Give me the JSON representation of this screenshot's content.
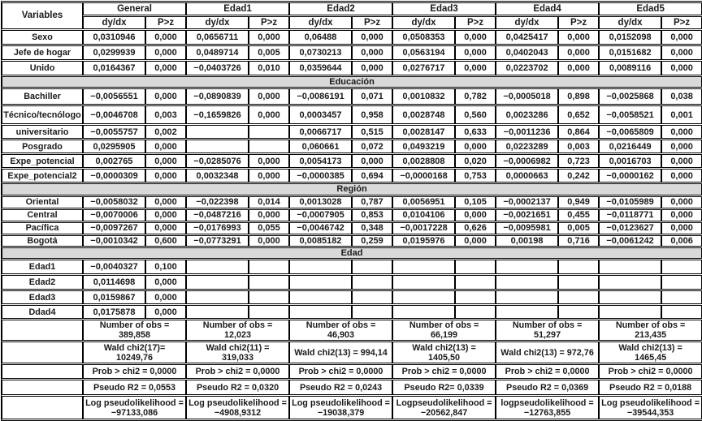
{
  "table": {
    "variables_header": "Variables",
    "col_groups": [
      "General",
      "Edad1",
      "Edad2",
      "Edad3",
      "Edad4",
      "Edad5"
    ],
    "subheaders": {
      "dydx": "dy/dx",
      "pz": "P>z"
    },
    "banner_bg_color": "#d9d9d9",
    "border_color": "#000000",
    "sections": [
      {
        "banner": null,
        "rows": [
          {
            "label": "Sexo",
            "values": [
              "0,0310946",
              "0,000",
              "0,0656711",
              "0,000",
              "0,06488",
              "0,000",
              "0,0508353",
              "0,000",
              "0,0425417",
              "0,000",
              "0,0152098",
              "0,000"
            ]
          },
          {
            "label": "Jefe de hogar",
            "values": [
              "0,0299939",
              "0,000",
              "0,0489714",
              "0,005",
              "0,0730213",
              "0,000",
              "0,0563194",
              "0,000",
              "0,0402043",
              "0,000",
              "0,0151682",
              "0,000"
            ]
          },
          {
            "label": "Unido",
            "values": [
              "0,0164367",
              "0,000",
              "−0,0403726",
              "0,010",
              "0,0359644",
              "0,000",
              "0,0276717",
              "0,000",
              "0,0223702",
              "0,000",
              "0,0089116",
              "0,000"
            ]
          }
        ]
      },
      {
        "banner": "Educación",
        "rows": [
          {
            "label": "Bachiller",
            "values": [
              "−0,0056551",
              "0,000",
              "−0,0890839",
              "0,000",
              "−0,0086191",
              "0,071",
              "0,0010832",
              "0,782",
              "−0,0005018",
              "0,898",
              "−0,0025868",
              "0,038"
            ]
          },
          {
            "label": "Técnico/tecnólogo",
            "values": [
              "−0,0046708",
              "0,003",
              "−0,1659826",
              "0,000",
              "0,0003457",
              "0,958",
              "0,0028748",
              "0,560",
              "0,0023286",
              "0,652",
              "−0,0058521",
              "0,001"
            ]
          },
          {
            "label": "universitario",
            "values": [
              "−0,0055757",
              "0,002",
              "",
              "",
              "0,0066717",
              "0,515",
              "0,0028147",
              "0,633",
              "−0,0011236",
              "0,864",
              "−0,0065809",
              "0,000"
            ]
          },
          {
            "label": "Posgrado",
            "values": [
              "0,0295905",
              "0,000",
              "",
              "",
              "0,060661",
              "0,072",
              "0,0493219",
              "0,000",
              "0,0223289",
              "0,003",
              "0,0216449",
              "0,000"
            ]
          },
          {
            "label": "Expe_potencial",
            "values": [
              "0,002765",
              "0,000",
              "−0,0285076",
              "0,000",
              "0,0054173",
              "0,000",
              "0,0028808",
              "0,020",
              "−0,0006982",
              "0,723",
              "0,0016703",
              "0,000"
            ]
          },
          {
            "label": "Expe_potencial2",
            "values": [
              "−0,0000309",
              "0,000",
              "0,0032348",
              "0,000",
              "−0,0000385",
              "0,694",
              "−0,0000168",
              "0,753",
              "0,0000663",
              "0,242",
              "−0,0000162",
              "0,000"
            ]
          }
        ]
      },
      {
        "banner": "Región",
        "rows": [
          {
            "label": "Oriental",
            "values": [
              "−0,0058032",
              "0,000",
              "−0,022398",
              "0,014",
              "0,0013028",
              "0,787",
              "0,0056951",
              "0,105",
              "−0,0002137",
              "0,949",
              "−0,0105989",
              "0,000"
            ]
          },
          {
            "label": "Central",
            "values": [
              "−0,0070006",
              "0,000",
              "−0,0487216",
              "0,000",
              "−0,0007905",
              "0,853",
              "0,0104106",
              "0,000",
              "−0,0021651",
              "0,455",
              "−0,0118771",
              "0,000"
            ]
          },
          {
            "label": "Pacífica",
            "values": [
              "−0,0097267",
              "0,000",
              "−0,0176993",
              "0,055",
              "−0,0046742",
              "0,348",
              "−0,0017228",
              "0,626",
              "−0,0095981",
              "0,005",
              "−0,0123627",
              "0,000"
            ]
          },
          {
            "label": "Bogotá",
            "values": [
              "−0,0010342",
              "0,600",
              "−0,0773291",
              "0,000",
              "0,0085182",
              "0,259",
              "0,0195976",
              "0,000",
              "0,00198",
              "0,716",
              "−0,0061242",
              "0,006"
            ]
          }
        ]
      },
      {
        "banner": "Edad",
        "rows": [
          {
            "label": "Edad1",
            "values": [
              "−0,0040327",
              "0,100",
              "",
              "",
              "",
              "",
              "",
              "",
              "",
              "",
              "",
              ""
            ]
          },
          {
            "label": "Edad2",
            "values": [
              "0,0114698",
              "0,000",
              "",
              "",
              "",
              "",
              "",
              "",
              "",
              "",
              "",
              ""
            ]
          },
          {
            "label": "Edad3",
            "values": [
              "0,0159867",
              "0,000",
              "",
              "",
              "",
              "",
              "",
              "",
              "",
              "",
              "",
              ""
            ]
          },
          {
            "label": "Ddad4",
            "values": [
              "0,0175878",
              "0,000",
              "",
              "",
              "",
              "",
              "",
              "",
              "",
              "",
              "",
              ""
            ]
          }
        ]
      }
    ],
    "summary_rows": [
      {
        "name": "number-of-obs",
        "cells": [
          [
            "Number of obs =",
            "389,858"
          ],
          [
            "Number of obs =",
            "12,023"
          ],
          [
            "Number of obs =",
            "46,903"
          ],
          [
            "Number of obs =",
            "66,199"
          ],
          [
            "Number of obs =",
            "51,297"
          ],
          [
            "Number of obs =",
            "213,435"
          ]
        ]
      },
      {
        "name": "wald-chi2",
        "cells": [
          [
            "Wald chi2(17)=",
            "10249,76"
          ],
          [
            "Wald chi2(11) =",
            "319,033"
          ],
          [
            "Wald chi2(13) = 994,14"
          ],
          [
            "Wald chi2(13) =",
            "1405,50"
          ],
          [
            "Wald chi2(13) = 972,76"
          ],
          [
            "Wald chi2(13) =",
            "1465,45"
          ]
        ]
      },
      {
        "name": "prob-chi2",
        "cells": [
          [
            "Prob > chi2 = 0,0000"
          ],
          [
            "Prob > chi2 = 0,0000"
          ],
          [
            "Prob > chi2 = 0,0000"
          ],
          [
            "Prob > chi2 = 0,0000"
          ],
          [
            "Prob > chi2 = 0,0000"
          ],
          [
            "Prob > chi2 = 0,0000"
          ]
        ]
      },
      {
        "name": "pseudo-r2",
        "cells": [
          [
            "Pseudo R2 = 0,0553"
          ],
          [
            "Pseudo R2 = 0,0320"
          ],
          [
            "Pseudo R2 = 0,0243"
          ],
          [
            "Pseudo R2= 0,0339"
          ],
          [
            "Pseudo R2 = 0,0369"
          ],
          [
            "Pseudo R2 = 0,0188"
          ]
        ]
      },
      {
        "name": "log-pseudolikelihood",
        "cells": [
          [
            "Log pseudolikelihood =",
            "−97133,086"
          ],
          [
            "Log pseudolikelihood =",
            "−4908,9312"
          ],
          [
            "Log pseudolikelihood =",
            "−19038,379"
          ],
          [
            "Logpseudolikelihood =",
            "−20562,847"
          ],
          [
            "logpseudolikelihood =",
            "−12763,855"
          ],
          [
            "Log pseudolikelihood =",
            "−39544,353"
          ]
        ]
      }
    ]
  }
}
